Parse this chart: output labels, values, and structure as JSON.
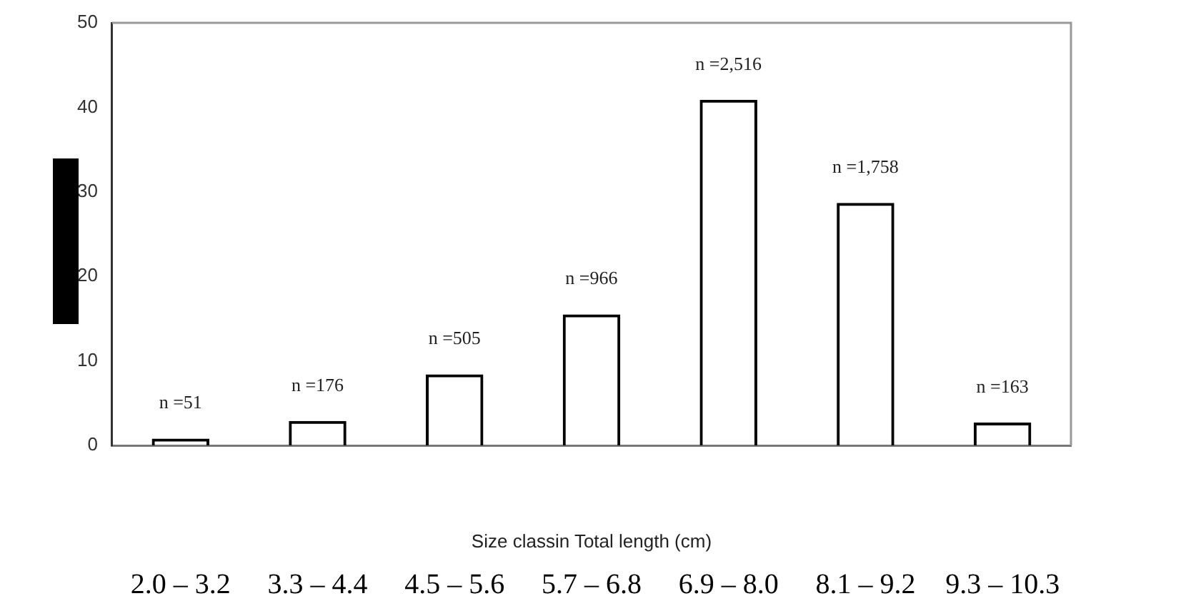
{
  "chart_data": {
    "type": "bar",
    "xlabel": "Size classin Total length (cm)",
    "categories": [
      "2.0 – 3.2",
      "3.3 – 4.4",
      "4.5 – 5.6",
      "5.7 – 6.8",
      "6.9 – 8.0",
      "8.1 – 9.2",
      "9.3 – 10.3"
    ],
    "values": [
      0.8,
      2.9,
      8.4,
      15.5,
      40.9,
      28.7,
      2.7
    ],
    "annotations": [
      {
        "text": "n =51",
        "x": "2.0 – 3.2",
        "y": 0.8
      },
      {
        "text": "n =176",
        "x": "3.3 – 4.4",
        "y": 2.9
      },
      {
        "text": "n =505",
        "x": "4.5 – 5.6",
        "y": 8.4
      },
      {
        "text": "n =966",
        "x": "5.7 – 6.8",
        "y": 15.5
      },
      {
        "text": "n =2,516",
        "x": "6.9 – 8.0",
        "y": 40.9
      },
      {
        "text": "n =1,758",
        "x": "8.1 – 9.2",
        "y": 28.7
      },
      {
        "text": "n =163",
        "x": "9.3 – 10.3",
        "y": 2.7
      }
    ],
    "color": "#000000",
    "ylim": [
      0,
      50
    ],
    "yticks": [
      0,
      10,
      20,
      30,
      40,
      50
    ],
    "grid": false,
    "legend": false
  }
}
